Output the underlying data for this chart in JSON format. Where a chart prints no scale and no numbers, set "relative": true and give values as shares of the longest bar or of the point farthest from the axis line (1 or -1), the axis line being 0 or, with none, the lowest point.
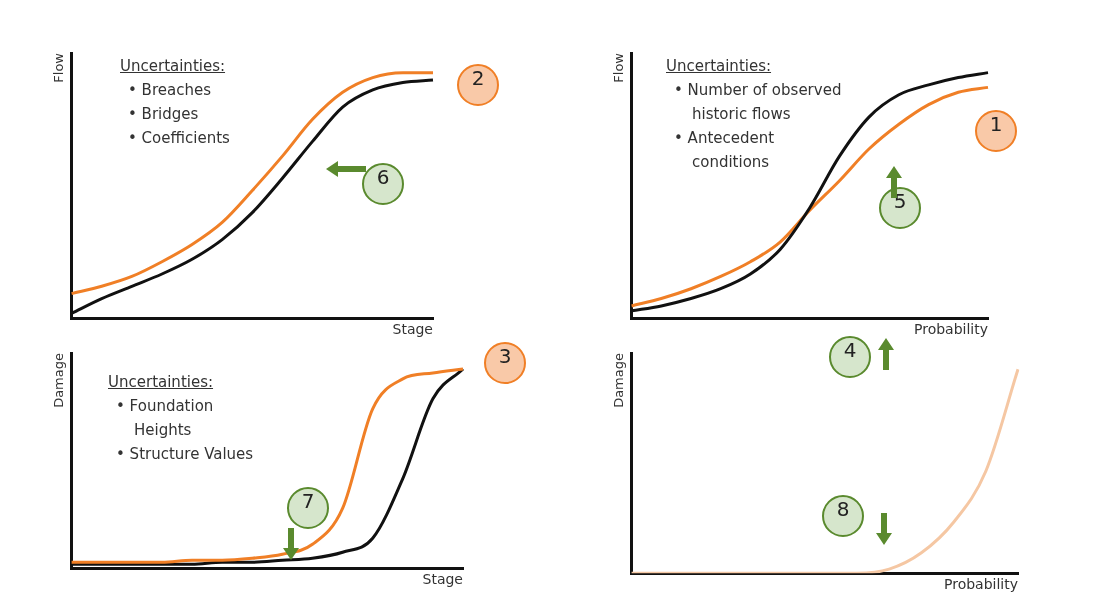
{
  "chart_data": [
    {
      "type": "line",
      "relative": true,
      "xlabel": "Stage",
      "ylabel": "Flow",
      "categories": [
        null,
        null,
        null,
        null,
        null,
        null,
        null,
        null,
        null,
        null,
        null,
        null,
        null
      ],
      "series": [
        {
          "color": "#f07f26",
          "values": [
            0.1,
            0.13,
            0.17,
            0.23,
            0.3,
            0.39,
            0.52,
            0.66,
            0.81,
            0.92,
            0.98,
            1.0,
            1.0
          ]
        },
        {
          "color": "#111111",
          "values": [
            0.02,
            0.08,
            0.13,
            0.18,
            0.24,
            0.32,
            0.43,
            0.57,
            0.72,
            0.86,
            0.93,
            0.96,
            0.97
          ]
        }
      ],
      "annotations": [
        "Uncertainties:\n• Breaches\n• Bridges\n• Coefficients",
        "2",
        "6"
      ]
    },
    {
      "type": "line",
      "relative": true,
      "xlabel": "Probability",
      "ylabel": "Flow",
      "categories": [
        null,
        null,
        null,
        null,
        null,
        null,
        null,
        null,
        null,
        null,
        null,
        null,
        null
      ],
      "series": [
        {
          "color": "#111111",
          "values": [
            0.03,
            0.05,
            0.08,
            0.12,
            0.18,
            0.28,
            0.45,
            0.66,
            0.82,
            0.91,
            0.95,
            0.98,
            1.0
          ]
        },
        {
          "color": "#f07f26",
          "values": [
            0.05,
            0.08,
            0.12,
            0.17,
            0.23,
            0.31,
            0.44,
            0.56,
            0.69,
            0.79,
            0.87,
            0.92,
            0.94
          ]
        }
      ],
      "annotations": [
        "Uncertainties:\n• Number of observed historic flows\n• Antecedent conditions",
        "1",
        "5"
      ]
    },
    {
      "type": "line",
      "relative": true,
      "xlabel": "Stage",
      "ylabel": "Damage",
      "categories": [
        null,
        null,
        null,
        null,
        null,
        null,
        null,
        null,
        null,
        null,
        null,
        null,
        null,
        null
      ],
      "series": [
        {
          "color": "#f07f26",
          "values": [
            0.03,
            0.03,
            0.03,
            0.03,
            0.04,
            0.04,
            0.05,
            0.07,
            0.12,
            0.3,
            0.8,
            0.95,
            0.98,
            1.0
          ]
        },
        {
          "color": "#111111",
          "values": [
            0.02,
            0.02,
            0.02,
            0.02,
            0.02,
            0.03,
            0.03,
            0.04,
            0.05,
            0.08,
            0.15,
            0.45,
            0.85,
            1.0
          ]
        }
      ],
      "annotations": [
        "Uncertainties:\n• Foundation Heights\n• Structure Values",
        "3",
        "7"
      ]
    },
    {
      "type": "line",
      "relative": true,
      "xlabel": "Probability",
      "ylabel": "Damage",
      "categories": [
        null,
        null,
        null,
        null,
        null,
        null,
        null,
        null,
        null,
        null,
        null,
        null,
        null
      ],
      "series": [
        {
          "color": "#f5c7a3",
          "values": [
            0,
            0,
            0,
            0,
            0,
            0,
            0,
            0,
            0.02,
            0.1,
            0.25,
            0.5,
            1.0
          ]
        }
      ],
      "annotations": [
        "4",
        "8"
      ]
    }
  ]
}
